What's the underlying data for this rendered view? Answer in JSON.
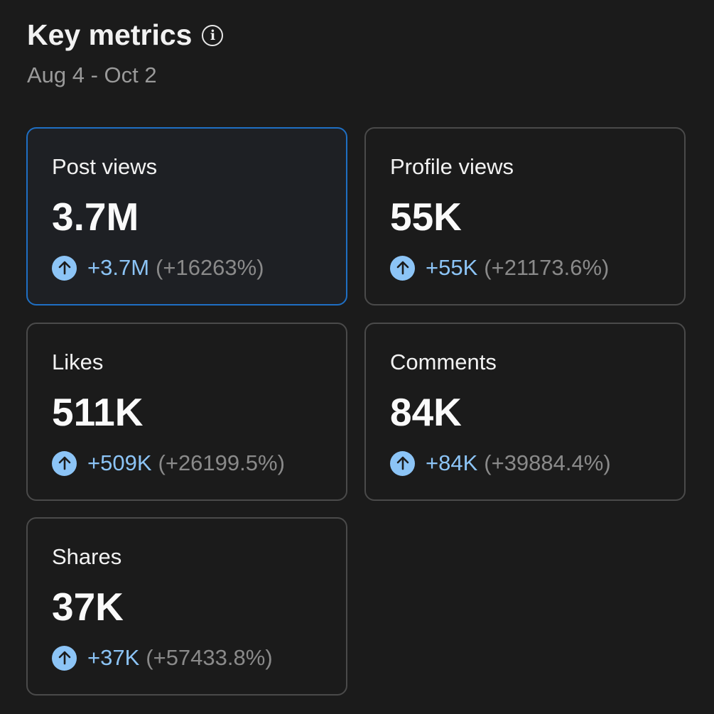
{
  "header": {
    "title": "Key metrics",
    "info_icon": "info-icon",
    "date_range": "Aug 4 - Oct 2"
  },
  "colors": {
    "positive": "#8cc4f6",
    "selected_border": "#1f6fc3"
  },
  "metrics": [
    {
      "label": "Post views",
      "value": "3.7M",
      "change": "+3.7M",
      "percent": "(+16263%)",
      "selected": true
    },
    {
      "label": "Profile views",
      "value": "55K",
      "change": "+55K",
      "percent": "(+21173.6%)"
    },
    {
      "label": "Likes",
      "value": "511K",
      "change": "+509K",
      "percent": "(+26199.5%)"
    },
    {
      "label": "Comments",
      "value": "84K",
      "change": "+84K",
      "percent": "(+39884.4%)"
    },
    {
      "label": "Shares",
      "value": "37K",
      "change": "+37K",
      "percent": "(+57433.8%)"
    }
  ]
}
